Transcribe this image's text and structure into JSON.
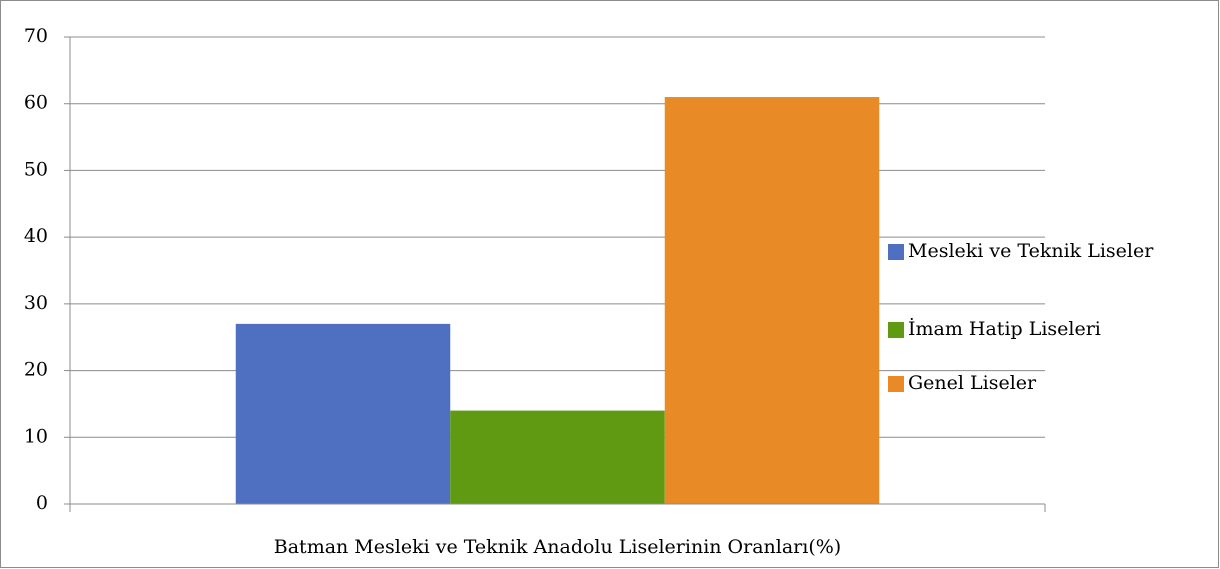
{
  "chart_data": {
    "type": "bar",
    "categories": [
      "Batman Mesleki ve Teknik Anadolu Liselerinin Oranları(%)"
    ],
    "series": [
      {
        "name": "Mesleki ve Teknik Liseler",
        "color": "#4f6fc0",
        "values": [
          27
        ]
      },
      {
        "name": "İmam Hatip Liseleri",
        "color": "#5f9a12",
        "values": [
          14
        ]
      },
      {
        "name": "Genel Liseler",
        "color": "#e88a25",
        "values": [
          61
        ]
      }
    ],
    "ylim": [
      0,
      70
    ],
    "yticks": [
      0,
      10,
      20,
      30,
      40,
      50,
      60,
      70
    ],
    "grid": true,
    "legend": "right"
  }
}
